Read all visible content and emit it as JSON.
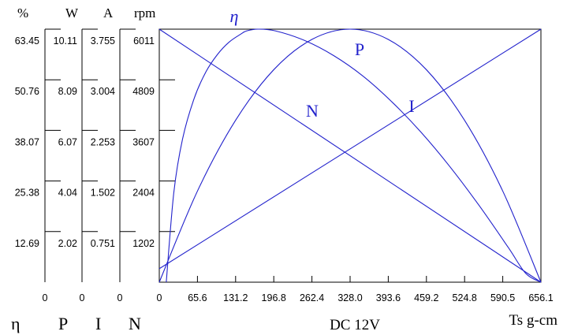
{
  "chart_data": {
    "type": "line",
    "title": "DC 12V",
    "xlabel": "Ts  g-cm",
    "xlim": [
      0,
      656.1
    ],
    "x_ticks": [
      "0",
      "65.6",
      "131.2",
      "196.8",
      "262.4",
      "328.0",
      "393.6",
      "459.2",
      "524.8",
      "590.5",
      "656.1"
    ],
    "axes": [
      {
        "unit": "%",
        "ticks": [
          "12.69",
          "25.38",
          "38.07",
          "50.76",
          "63.45"
        ],
        "zero": "0",
        "ylim": [
          0,
          63.45
        ]
      },
      {
        "unit": "W",
        "ticks": [
          "2.02",
          "4.04",
          "6.07",
          "8.09",
          "10.11"
        ],
        "zero": "0",
        "ylim": [
          0,
          10.11
        ]
      },
      {
        "unit": "A",
        "ticks": [
          "0.751",
          "1.502",
          "2.253",
          "3.004",
          "3.755"
        ],
        "zero": "0",
        "ylim": [
          0,
          3.755
        ]
      },
      {
        "unit": "rpm",
        "ticks": [
          "1202",
          "2404",
          "3607",
          "4809",
          "6011"
        ],
        "zero": "",
        "ylim": [
          0,
          6011
        ]
      }
    ],
    "bottom_legend": [
      "η",
      "P",
      "I",
      "N"
    ],
    "series": [
      {
        "name": "N",
        "axis": "rpm",
        "x": [
          0,
          656.1
        ],
        "y": [
          6011,
          0
        ]
      },
      {
        "name": "I",
        "axis": "A",
        "x": [
          0,
          656.1
        ],
        "y": [
          0.2,
          3.755
        ]
      },
      {
        "name": "P",
        "axis": "W",
        "x": [
          0,
          65.6,
          131.2,
          196.8,
          262.4,
          328.0,
          393.6,
          459.2,
          524.8,
          590.5,
          656.1
        ],
        "y": [
          0,
          3.64,
          6.47,
          8.49,
          9.7,
          10.11,
          9.7,
          8.49,
          6.47,
          3.64,
          0
        ]
      },
      {
        "name": "η",
        "axis": "%",
        "x": [
          12,
          25,
          40,
          60,
          80,
          100,
          120,
          140,
          150,
          170,
          200,
          250,
          300,
          350,
          400,
          450,
          500,
          550,
          600,
          630,
          656.1
        ],
        "y": [
          0,
          22.5,
          35.9,
          46.1,
          52.7,
          57.1,
          60.2,
          62.2,
          63.0,
          63.45,
          63.0,
          60.6,
          56.8,
          51.7,
          45.2,
          37.6,
          28.9,
          19.2,
          8.7,
          2.2,
          0
        ]
      }
    ],
    "curve_labels": [
      {
        "text": "η",
        "series": "η"
      },
      {
        "text": "P",
        "series": "P"
      },
      {
        "text": "N",
        "series": "N"
      },
      {
        "text": "I",
        "series": "I"
      }
    ],
    "colors": {
      "curves": "#2222cc",
      "axes": "#000000"
    },
    "grid": false
  }
}
